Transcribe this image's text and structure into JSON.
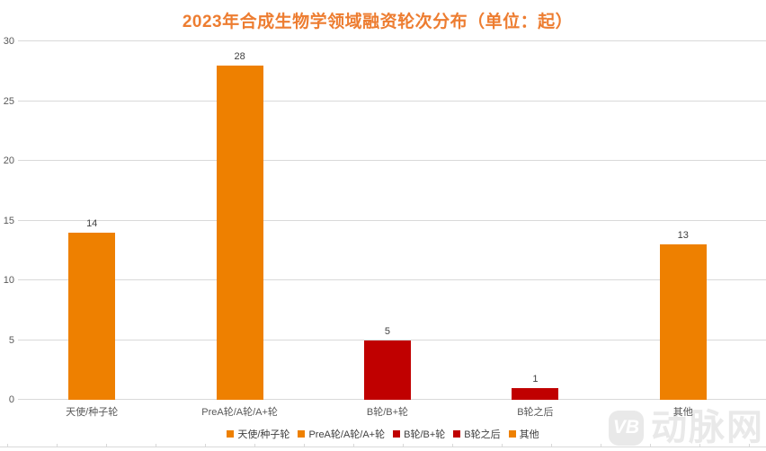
{
  "title": "2023年合成生物学领域融资轮次分布（单位：起）",
  "chart_data": {
    "type": "bar",
    "title": "2023年合成生物学领域融资轮次分布（单位：起）",
    "categories": [
      "天使/种子轮",
      "PreA轮/A轮/A+轮",
      "B轮/B+轮",
      "B轮之后",
      "其他"
    ],
    "values": [
      14,
      28,
      5,
      1,
      13
    ],
    "bar_colors": [
      "#EE8000",
      "#EE8000",
      "#C00000",
      "#C00000",
      "#EE8000"
    ],
    "xlabel": "",
    "ylabel": "",
    "ylim": [
      0,
      30
    ],
    "yticks": [
      0,
      5,
      10,
      15,
      20,
      25,
      30
    ],
    "grid": true,
    "data_labels": true,
    "legend_position": "bottom",
    "legend": [
      {
        "label": "天使/种子轮",
        "color": "#EE8000"
      },
      {
        "label": "PreA轮/A轮/A+轮",
        "color": "#EE8000"
      },
      {
        "label": "B轮/B+轮",
        "color": "#C00000"
      },
      {
        "label": "B轮之后",
        "color": "#C00000"
      },
      {
        "label": "其他",
        "color": "#EE8000"
      }
    ]
  },
  "colors": {
    "title": "#ED7D31",
    "orange_series": "#EE8000",
    "red_series": "#C00000",
    "gridline": "#D9D9D9",
    "axis_text": "#595959",
    "data_label_text": "#404040",
    "watermark": "#E9E9E9",
    "background": "#FFFFFF"
  },
  "watermark": {
    "logo": "VB",
    "text": "动脉网"
  }
}
